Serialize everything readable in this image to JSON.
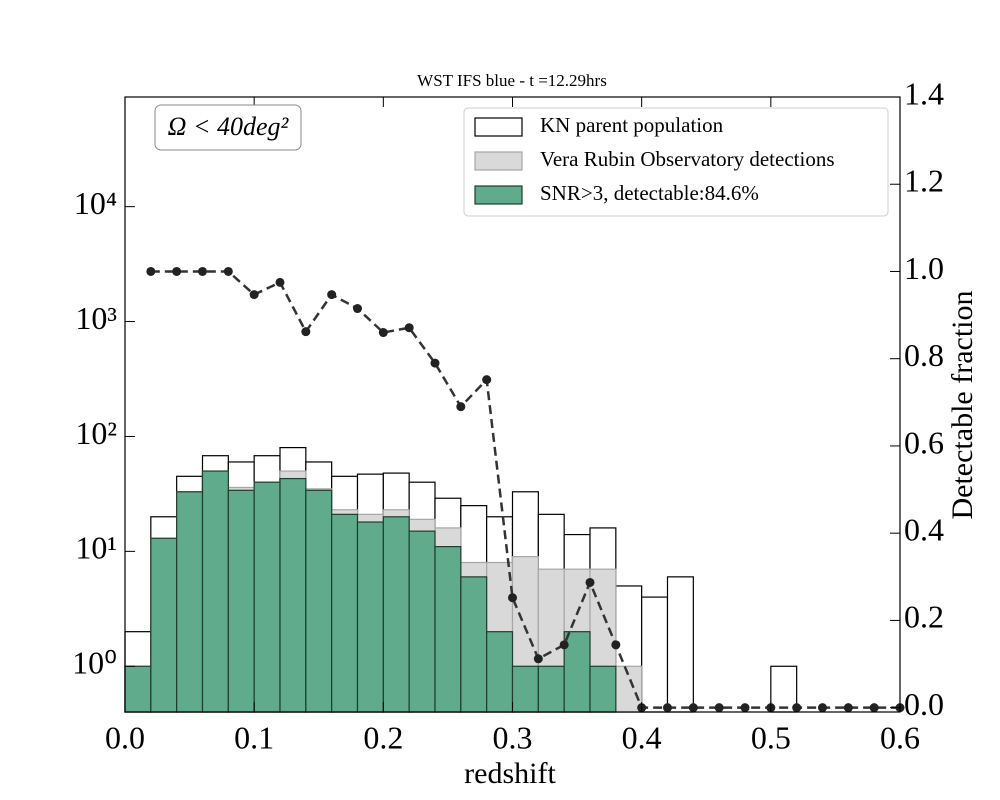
{
  "chart_data": {
    "type": "histogram",
    "title": "WST IFS blue - t =12.29hrs",
    "annotation": "Ω < 40deg²",
    "xlabel": "redshift",
    "y2label": "Detectable fraction",
    "log_y": true,
    "legend": "upper right",
    "bins": [
      0,
      0.02,
      0.04,
      0.06,
      0.08,
      0.1,
      0.12,
      0.14,
      0.16,
      0.18,
      0.2,
      0.22,
      0.24,
      0.26,
      0.28,
      0.3,
      0.32,
      0.34,
      0.36,
      0.38,
      0.4,
      0.42,
      0.44,
      0.46,
      0.48,
      0.5,
      0.52,
      0.54,
      0.56,
      0.58,
      0.6
    ],
    "series": [
      {
        "name": "KN parent population",
        "color": "#ffffff",
        "edgecolor": "#000000",
        "values": [
          2,
          20,
          45,
          68,
          60,
          68,
          80,
          60,
          45,
          47,
          48,
          40,
          29,
          25,
          20,
          33,
          21,
          14,
          16,
          5,
          4,
          6,
          0,
          0,
          0,
          1,
          0,
          0,
          0,
          0
        ]
      },
      {
        "name": "Vera Rubin Observatory detections",
        "color": "#d9d9d9",
        "edgecolor": "#a6a6a6",
        "values": [
          1,
          13,
          33,
          50,
          36,
          40,
          50,
          35,
          23,
          21,
          23,
          19,
          16,
          8,
          8,
          9,
          7,
          7,
          7,
          1,
          0,
          0,
          0,
          0,
          0,
          0,
          0,
          0,
          0,
          0
        ]
      },
      {
        "name": "SNR>3, detectable:84.6%",
        "color": "#5fab8c",
        "edgecolor": "#1f3d30",
        "values": [
          1,
          13,
          33,
          50,
          34,
          40,
          43,
          34,
          21,
          18,
          20,
          15,
          11,
          6,
          2,
          1,
          1,
          2,
          1,
          0,
          0,
          0,
          0,
          0,
          0,
          0,
          0,
          0,
          0,
          0
        ]
      },
      {
        "type": "line",
        "axis": "y2",
        "color": "#333333",
        "x": [
          0.02,
          0.04,
          0.06,
          0.08,
          0.1,
          0.12,
          0.14,
          0.16,
          0.18,
          0.2,
          0.22,
          0.24,
          0.26,
          0.28,
          0.3,
          0.32,
          0.34,
          0.36,
          0.38,
          0.4,
          0.42,
          0.44,
          0.46,
          0.48,
          0.5,
          0.52,
          0.54,
          0.56,
          0.58,
          0.6
        ],
        "values": [
          1.0,
          1.0,
          1.0,
          1.0,
          0.947,
          0.975,
          0.862,
          0.947,
          0.915,
          0.86,
          0.871,
          0.79,
          0.69,
          0.752,
          0.252,
          0.112,
          0.144,
          0.287,
          0.144,
          0,
          0,
          0,
          0,
          0,
          0,
          0,
          0,
          0,
          0,
          0
        ]
      }
    ],
    "xlim": [
      0,
      0.6
    ],
    "xticks": [
      {
        "value": 0,
        "label": "0.0"
      },
      0.1,
      0.2,
      0.3,
      0.4,
      0.5,
      0.6
    ],
    "ylim": [
      0.4,
      90000
    ],
    "yticks": [
      {
        "value": 1,
        "label": "10⁰"
      },
      {
        "value": 10,
        "label": "10¹"
      },
      {
        "value": 100,
        "label": "10²"
      },
      {
        "value": 1000,
        "label": "10³"
      },
      {
        "value": 10000,
        "label": "10⁴"
      }
    ],
    "y2lim": [
      -0.01,
      1.4
    ],
    "y2ticks": [
      {
        "value": 0,
        "label": "0.0"
      },
      0.2,
      0.4,
      0.6,
      0.8,
      {
        "value": 1,
        "label": "1.0"
      },
      1.2,
      1.4
    ]
  }
}
